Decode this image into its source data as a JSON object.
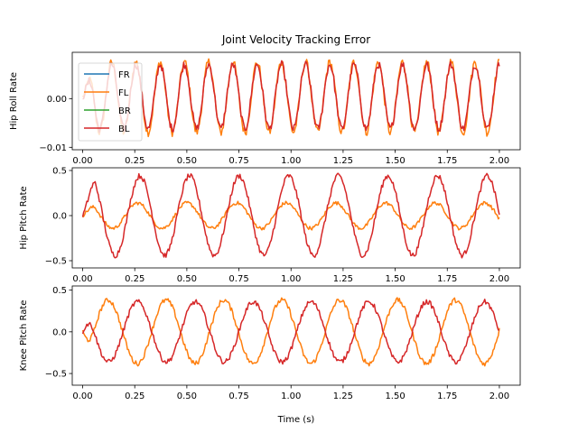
{
  "chart_data": {
    "type": "line",
    "title": "Joint Velocity Tracking Error",
    "xlabel": "Time (s)",
    "x_ticks": [
      "0.00",
      "0.25",
      "0.50",
      "0.75",
      "1.00",
      "1.25",
      "1.50",
      "1.75",
      "2.00"
    ],
    "xlim": [
      -0.05,
      2.1
    ],
    "legend": {
      "placement": "upper-left of top subplot",
      "entries": [
        "FR",
        "FL",
        "BR",
        "BL"
      ]
    },
    "colors": {
      "FR": "#1f77b4",
      "FL": "#ff7f0e",
      "BR": "#2ca02c",
      "BL": "#d62728"
    },
    "subplots": [
      {
        "ylabel": "Hip Roll Rate",
        "ylim": [
          -0.0105,
          0.0095
        ],
        "y_ticks": [
          {
            "v": 0.0,
            "label": "0.00"
          },
          {
            "v": -0.01,
            "label": "−0.01"
          }
        ],
        "series": [
          {
            "name": "FL",
            "kind": "sine",
            "amp": 0.0072,
            "freq": 8.6,
            "phase": 0.3,
            "offset": 0.0003,
            "noise": 0.0009
          },
          {
            "name": "BL",
            "kind": "sine",
            "amp": 0.0066,
            "freq": 8.6,
            "phase": 0.3,
            "offset": 0.0004,
            "noise": 0.0008
          }
        ]
      },
      {
        "ylabel": "Hip Pitch Rate",
        "ylim": [
          -0.58,
          0.53
        ],
        "y_ticks": [
          {
            "v": 0.5,
            "label": "0.5"
          },
          {
            "v": 0.0,
            "label": "0.0"
          },
          {
            "v": -0.5,
            "label": "−0.5"
          }
        ],
        "series": [
          {
            "name": "FL",
            "kind": "sine",
            "amp": 0.14,
            "freq": 4.2,
            "phase": 0.9,
            "offset": 0.0,
            "noise": 0.02
          },
          {
            "name": "BL",
            "kind": "sine",
            "amp": 0.44,
            "freq": 4.2,
            "phase": 0.6,
            "offset": 0.0,
            "noise": 0.03
          }
        ]
      },
      {
        "ylabel": "Knee Pitch Rate",
        "ylim": [
          -0.64,
          0.55
        ],
        "y_ticks": [
          {
            "v": 0.5,
            "label": "0.5"
          },
          {
            "v": 0.0,
            "label": "0.0"
          },
          {
            "v": -0.5,
            "label": "−0.5"
          }
        ],
        "series": [
          {
            "name": "FL",
            "kind": "sine",
            "amp": 0.38,
            "freq": 3.6,
            "phase": -1.2,
            "offset": 0.0,
            "noise": 0.03
          },
          {
            "name": "BL",
            "kind": "sine",
            "amp": 0.36,
            "freq": 3.6,
            "phase": 1.9,
            "offset": 0.0,
            "noise": 0.03
          }
        ]
      }
    ]
  }
}
